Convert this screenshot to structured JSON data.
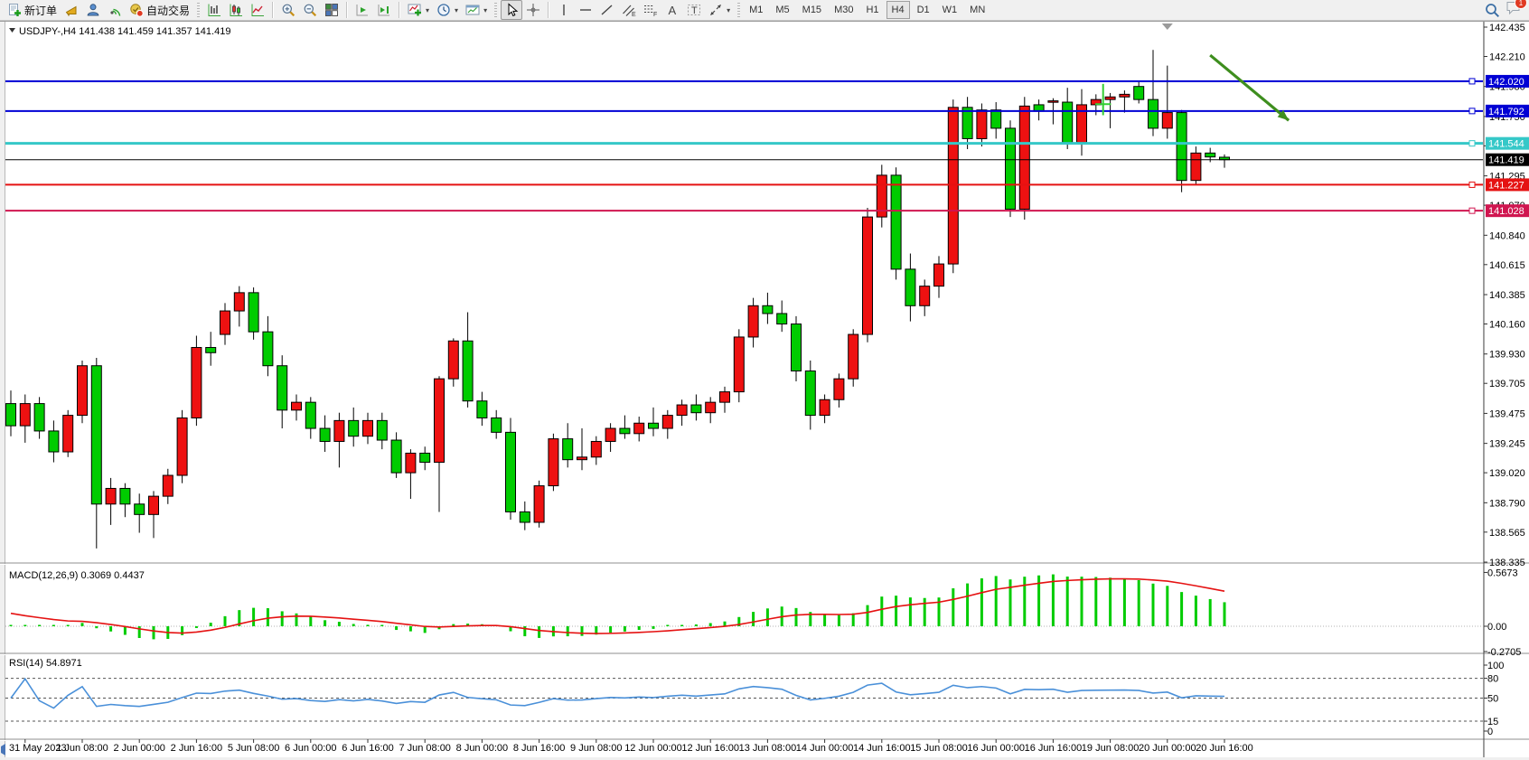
{
  "toolbar": {
    "new_order_label": "新订单",
    "autotrading_label": "自动交易",
    "tool_labels": {
      "channel": "E",
      "fibonacci": "F",
      "text": "A",
      "label": "T"
    },
    "timeframes": [
      "M1",
      "M5",
      "M15",
      "M30",
      "H1",
      "H4",
      "D1",
      "W1",
      "MN"
    ],
    "active_timeframe": "H4",
    "badge_count": "1"
  },
  "chart_data": {
    "type": "candlestick",
    "symbol": "USDJPY-",
    "period": "H4",
    "header_display": "USDJPY-,H4 141.438 141.459 141.357 141.419",
    "ohlc_display": {
      "open": "141.438",
      "high": "141.459",
      "low": "141.357",
      "close": "141.419"
    },
    "colors": {
      "bull": "#ee1111",
      "bear": "#00cc00",
      "wick": "#000000",
      "background": "#ffffff"
    },
    "price_axis": {
      "max": 142.435,
      "min": 138.335,
      "ticks": [
        "142.435",
        "142.210",
        "141.980",
        "141.750",
        "141.525",
        "141.295",
        "141.070",
        "140.840",
        "140.615",
        "140.385",
        "140.160",
        "139.930",
        "139.705",
        "139.475",
        "139.245",
        "139.020",
        "138.790",
        "138.565",
        "138.335"
      ]
    },
    "time_axis": {
      "labels": [
        "31 May 2023",
        "1 Jun 08:00",
        "2 Jun 00:00",
        "2 Jun 16:00",
        "5 Jun 08:00",
        "6 Jun 00:00",
        "6 Jun 16:00",
        "7 Jun 08:00",
        "8 Jun 00:00",
        "8 Jun 16:00",
        "9 Jun 08:00",
        "12 Jun 00:00",
        "12 Jun 16:00",
        "13 Jun 08:00",
        "14 Jun 00:00",
        "14 Jun 16:00",
        "15 Jun 08:00",
        "16 Jun 00:00",
        "16 Jun 16:00",
        "19 Jun 08:00",
        "20 Jun 00:00",
        "20 Jun 16:00"
      ],
      "first_label_candle_index": 1,
      "candles_per_label": 4
    },
    "current_price": {
      "value": 141.419,
      "label": "141.419",
      "line_color": "#000000",
      "tag_bg": "#000000"
    },
    "hlines": [
      {
        "price": 142.02,
        "label": "142.020",
        "color": "#0000d4",
        "width": 2
      },
      {
        "price": 141.792,
        "label": "141.792",
        "color": "#0000d4",
        "width": 2
      },
      {
        "price": 141.544,
        "label": "141.544",
        "color": "#35c8c8",
        "width": 3
      },
      {
        "price": 141.227,
        "label": "141.227",
        "color": "#e51212",
        "width": 2
      },
      {
        "price": 141.028,
        "label": "141.028",
        "color": "#d01650",
        "width": 2
      }
    ],
    "annotations": [
      {
        "type": "arrow",
        "from_bar": 84.0,
        "from_price": 142.22,
        "to_bar": 89.5,
        "to_price": 141.72,
        "color": "#3e8e1e"
      },
      {
        "type": "cross",
        "bar": 76.5,
        "price": 141.845,
        "price_high": 142.0,
        "price_low": 141.76,
        "half_width_bars": 0.55,
        "color": "#32cd32"
      },
      {
        "type": "shift_marker",
        "bar": 81,
        "color": "#9a9a9a"
      }
    ],
    "candles": [
      [
        139.55,
        139.65,
        139.3,
        139.38
      ],
      [
        139.38,
        139.62,
        139.25,
        139.55
      ],
      [
        139.55,
        139.6,
        139.28,
        139.34
      ],
      [
        139.34,
        139.42,
        139.1,
        139.18
      ],
      [
        139.18,
        139.5,
        139.14,
        139.46
      ],
      [
        139.46,
        139.88,
        139.4,
        139.84
      ],
      [
        139.84,
        139.9,
        138.44,
        138.78
      ],
      [
        138.78,
        138.98,
        138.62,
        138.9
      ],
      [
        138.9,
        138.94,
        138.68,
        138.78
      ],
      [
        138.78,
        138.86,
        138.56,
        138.7
      ],
      [
        138.7,
        138.88,
        138.52,
        138.84
      ],
      [
        138.84,
        139.05,
        138.78,
        139.0
      ],
      [
        139.0,
        139.5,
        138.94,
        139.44
      ],
      [
        139.44,
        140.07,
        139.38,
        139.98
      ],
      [
        139.98,
        140.1,
        139.84,
        139.94
      ],
      [
        140.08,
        140.32,
        140.0,
        140.26
      ],
      [
        140.26,
        140.45,
        140.14,
        140.4
      ],
      [
        140.4,
        140.44,
        140.04,
        140.1
      ],
      [
        140.1,
        140.22,
        139.76,
        139.84
      ],
      [
        139.84,
        139.92,
        139.36,
        139.5
      ],
      [
        139.5,
        139.62,
        139.42,
        139.56
      ],
      [
        139.56,
        139.6,
        139.28,
        139.36
      ],
      [
        139.36,
        139.46,
        139.18,
        139.26
      ],
      [
        139.26,
        139.48,
        139.06,
        139.42
      ],
      [
        139.42,
        139.52,
        139.22,
        139.3
      ],
      [
        139.3,
        139.48,
        139.24,
        139.42
      ],
      [
        139.42,
        139.48,
        139.2,
        139.27
      ],
      [
        139.27,
        139.33,
        138.98,
        139.02
      ],
      [
        139.02,
        139.2,
        138.82,
        139.17
      ],
      [
        139.17,
        139.22,
        139.04,
        139.1
      ],
      [
        139.1,
        139.76,
        138.72,
        139.74
      ],
      [
        139.74,
        140.05,
        139.68,
        140.03
      ],
      [
        140.03,
        140.25,
        139.52,
        139.57
      ],
      [
        139.57,
        139.64,
        139.38,
        139.44
      ],
      [
        139.44,
        139.5,
        139.28,
        139.33
      ],
      [
        139.33,
        139.44,
        138.66,
        138.72
      ],
      [
        138.72,
        138.8,
        138.58,
        138.64
      ],
      [
        138.64,
        138.96,
        138.6,
        138.92
      ],
      [
        138.92,
        139.32,
        138.88,
        139.28
      ],
      [
        139.28,
        139.4,
        139.06,
        139.12
      ],
      [
        139.12,
        139.36,
        139.04,
        139.14
      ],
      [
        139.14,
        139.3,
        139.08,
        139.26
      ],
      [
        139.26,
        139.4,
        139.18,
        139.36
      ],
      [
        139.36,
        139.46,
        139.28,
        139.32
      ],
      [
        139.32,
        139.45,
        139.26,
        139.4
      ],
      [
        139.4,
        139.52,
        139.3,
        139.36
      ],
      [
        139.36,
        139.5,
        139.28,
        139.46
      ],
      [
        139.46,
        139.58,
        139.38,
        139.54
      ],
      [
        139.54,
        139.62,
        139.42,
        139.48
      ],
      [
        139.48,
        139.6,
        139.4,
        139.56
      ],
      [
        139.56,
        139.68,
        139.48,
        139.64
      ],
      [
        139.64,
        140.12,
        139.56,
        140.06
      ],
      [
        140.06,
        140.36,
        139.98,
        140.3
      ],
      [
        140.3,
        140.4,
        140.16,
        140.24
      ],
      [
        140.24,
        140.34,
        140.1,
        140.16
      ],
      [
        140.16,
        140.22,
        139.72,
        139.8
      ],
      [
        139.8,
        139.88,
        139.35,
        139.46
      ],
      [
        139.46,
        139.62,
        139.4,
        139.58
      ],
      [
        139.58,
        139.78,
        139.52,
        139.74
      ],
      [
        139.74,
        140.12,
        139.68,
        140.08
      ],
      [
        140.08,
        141.05,
        140.02,
        140.98
      ],
      [
        140.98,
        141.38,
        140.9,
        141.3
      ],
      [
        141.3,
        141.36,
        140.5,
        140.58
      ],
      [
        140.58,
        140.7,
        140.18,
        140.3
      ],
      [
        140.3,
        140.5,
        140.22,
        140.45
      ],
      [
        140.45,
        140.68,
        140.36,
        140.62
      ],
      [
        140.62,
        141.88,
        140.55,
        141.82
      ],
      [
        141.82,
        141.9,
        141.5,
        141.58
      ],
      [
        141.58,
        141.85,
        141.52,
        141.8
      ],
      [
        141.8,
        141.86,
        141.58,
        141.66
      ],
      [
        141.66,
        141.72,
        140.98,
        141.04
      ],
      [
        141.04,
        141.9,
        140.96,
        141.83
      ],
      [
        141.84,
        141.88,
        141.72,
        141.79
      ],
      [
        141.86,
        141.89,
        141.69,
        141.87
      ],
      [
        141.86,
        141.97,
        141.5,
        141.55
      ],
      [
        141.55,
        141.96,
        141.45,
        141.84
      ],
      [
        141.84,
        141.92,
        141.76,
        141.88
      ],
      [
        141.88,
        141.93,
        141.66,
        141.9
      ],
      [
        141.9,
        141.95,
        141.78,
        141.92
      ],
      [
        141.98,
        142.02,
        141.85,
        141.88
      ],
      [
        141.88,
        142.26,
        141.6,
        141.66
      ],
      [
        141.66,
        142.14,
        141.58,
        141.78
      ],
      [
        141.78,
        141.8,
        141.17,
        141.26
      ],
      [
        141.26,
        141.52,
        141.23,
        141.47
      ],
      [
        141.47,
        141.51,
        141.4,
        141.44
      ],
      [
        141.438,
        141.459,
        141.357,
        141.419
      ]
    ],
    "indicators": [
      {
        "name": "MACD",
        "params": [
          12,
          26,
          9
        ],
        "display": "MACD(12,26,9) 0.3069 0.4437",
        "main_value": "0.3069",
        "signal_value": "0.4437",
        "axis_labels": [
          "0.5673",
          "0.00",
          "-0.2705"
        ],
        "axis_values": [
          0.5673,
          0.0,
          -0.2705
        ],
        "histogram_color": "#00cc00",
        "signal_color": "#e51212"
      },
      {
        "name": "RSI",
        "params": [
          14
        ],
        "display": "RSI(14) 54.8971",
        "value": "54.8971",
        "levels": [
          80,
          50,
          15
        ],
        "axis_labels": [
          "100",
          "80",
          "50",
          "15",
          "0"
        ],
        "axis_values": [
          100,
          80,
          50,
          15,
          0
        ],
        "line_color": "#4a90d9"
      }
    ]
  }
}
